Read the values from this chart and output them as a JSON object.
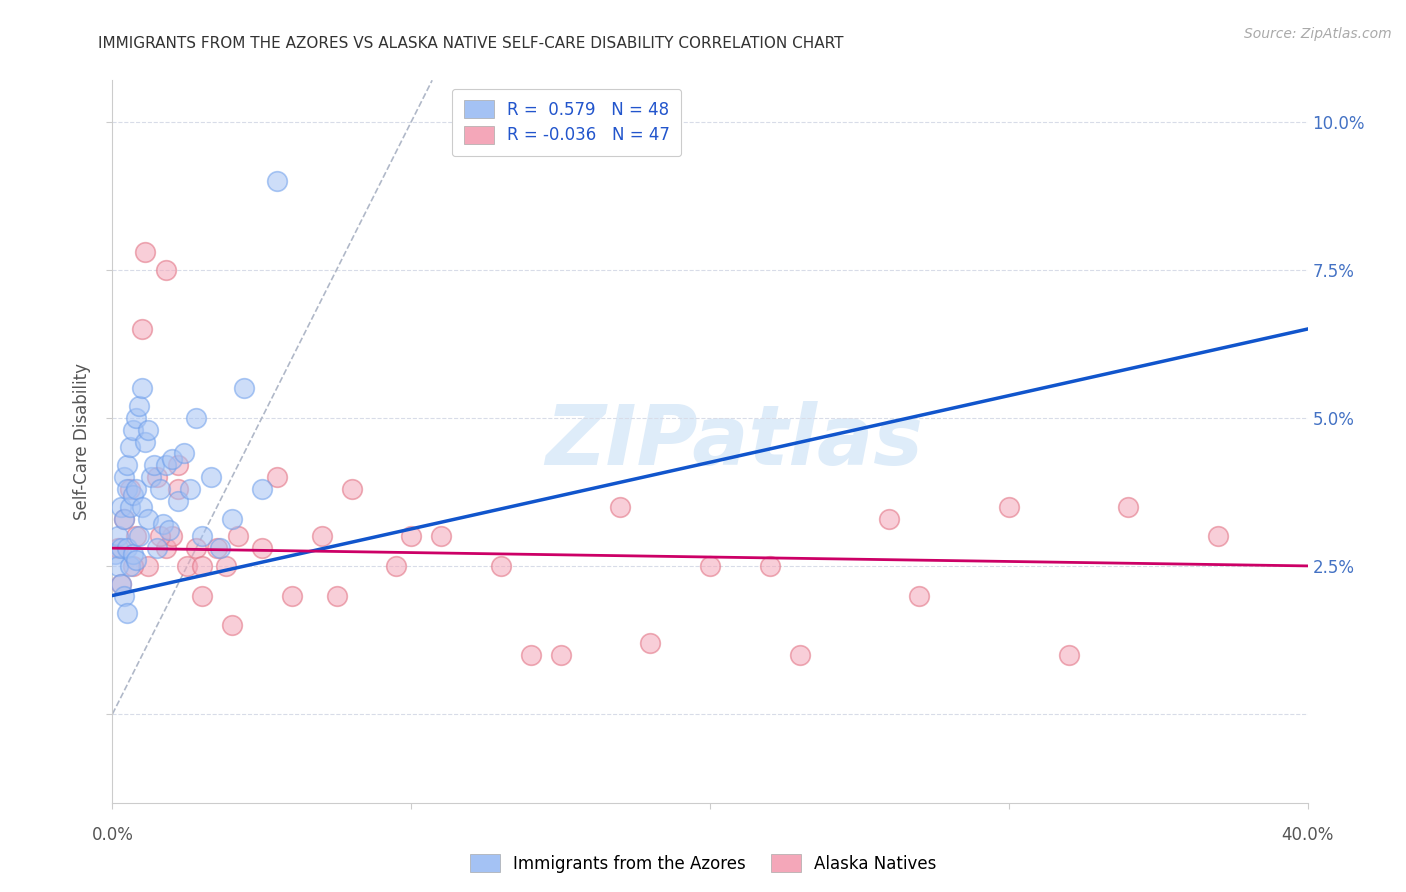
{
  "title": "IMMIGRANTS FROM THE AZORES VS ALASKA NATIVE SELF-CARE DISABILITY CORRELATION CHART",
  "source": "Source: ZipAtlas.com",
  "ylabel": "Self-Care Disability",
  "ytick_vals": [
    0.0,
    0.025,
    0.05,
    0.075,
    0.1
  ],
  "ytick_labels_right": [
    "",
    "2.5%",
    "5.0%",
    "7.5%",
    "10.0%"
  ],
  "xlim": [
    0.0,
    0.4
  ],
  "ylim": [
    -0.015,
    0.107
  ],
  "blue_color": "#a4c2f4",
  "pink_color": "#f4a7b9",
  "blue_edge_color": "#6d9eeb",
  "pink_edge_color": "#e06c7e",
  "blue_line_color": "#1155cc",
  "pink_line_color": "#cc0066",
  "diagonal_color": "#b0b8c8",
  "watermark_text": "ZIPatlas",
  "watermark_color": "#d0e4f7",
  "blue_scatter_x": [
    0.001,
    0.002,
    0.002,
    0.003,
    0.003,
    0.003,
    0.004,
    0.004,
    0.004,
    0.005,
    0.005,
    0.005,
    0.005,
    0.006,
    0.006,
    0.006,
    0.007,
    0.007,
    0.007,
    0.008,
    0.008,
    0.008,
    0.009,
    0.009,
    0.01,
    0.01,
    0.011,
    0.012,
    0.012,
    0.013,
    0.014,
    0.015,
    0.016,
    0.017,
    0.018,
    0.019,
    0.02,
    0.022,
    0.024,
    0.026,
    0.028,
    0.03,
    0.033,
    0.036,
    0.04,
    0.044,
    0.05,
    0.055
  ],
  "blue_scatter_y": [
    0.027,
    0.03,
    0.025,
    0.035,
    0.028,
    0.022,
    0.04,
    0.033,
    0.02,
    0.042,
    0.038,
    0.028,
    0.017,
    0.045,
    0.035,
    0.025,
    0.048,
    0.037,
    0.027,
    0.05,
    0.038,
    0.026,
    0.052,
    0.03,
    0.055,
    0.035,
    0.046,
    0.048,
    0.033,
    0.04,
    0.042,
    0.028,
    0.038,
    0.032,
    0.042,
    0.031,
    0.043,
    0.036,
    0.044,
    0.038,
    0.05,
    0.03,
    0.04,
    0.028,
    0.033,
    0.055,
    0.038,
    0.09
  ],
  "pink_scatter_x": [
    0.002,
    0.004,
    0.006,
    0.008,
    0.01,
    0.012,
    0.015,
    0.018,
    0.02,
    0.022,
    0.025,
    0.028,
    0.03,
    0.035,
    0.038,
    0.042,
    0.05,
    0.06,
    0.07,
    0.08,
    0.095,
    0.11,
    0.13,
    0.15,
    0.17,
    0.2,
    0.23,
    0.26,
    0.3,
    0.34,
    0.003,
    0.007,
    0.011,
    0.016,
    0.022,
    0.03,
    0.04,
    0.055,
    0.075,
    0.1,
    0.14,
    0.18,
    0.22,
    0.27,
    0.32,
    0.37,
    0.018
  ],
  "pink_scatter_y": [
    0.028,
    0.033,
    0.038,
    0.03,
    0.065,
    0.025,
    0.04,
    0.028,
    0.03,
    0.038,
    0.025,
    0.028,
    0.02,
    0.028,
    0.025,
    0.03,
    0.028,
    0.02,
    0.03,
    0.038,
    0.025,
    0.03,
    0.025,
    0.01,
    0.035,
    0.025,
    0.01,
    0.033,
    0.035,
    0.035,
    0.022,
    0.025,
    0.078,
    0.03,
    0.042,
    0.025,
    0.015,
    0.04,
    0.02,
    0.03,
    0.01,
    0.012,
    0.025,
    0.02,
    0.01,
    0.03,
    0.075
  ],
  "blue_line_x": [
    0.0,
    0.4
  ],
  "blue_line_y": [
    0.02,
    0.065
  ],
  "pink_line_x": [
    0.0,
    0.4
  ],
  "pink_line_y": [
    0.028,
    0.025
  ]
}
